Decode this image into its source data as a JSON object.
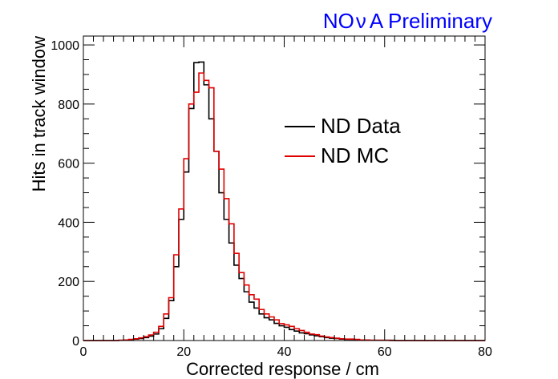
{
  "banner": {
    "text_left": "NO",
    "text_nu": "ν",
    "text_right": "A Preliminary",
    "color": "#0000ff"
  },
  "chart_data": {
    "type": "line",
    "step": true,
    "xlabel": "Corrected response / cm",
    "ylabel": "Hits in track window",
    "xlim": [
      0,
      80
    ],
    "ylim": [
      0,
      1030
    ],
    "xticks": [
      0,
      20,
      40,
      60,
      80
    ],
    "yticks": [
      0,
      200,
      400,
      600,
      800,
      1000
    ],
    "grid": false,
    "legend": "upper-right-inside",
    "bin_width": 1,
    "x": [
      0,
      1,
      2,
      3,
      4,
      5,
      6,
      7,
      8,
      9,
      10,
      11,
      12,
      13,
      14,
      15,
      16,
      17,
      18,
      19,
      20,
      21,
      22,
      23,
      24,
      25,
      26,
      27,
      28,
      29,
      30,
      31,
      32,
      33,
      34,
      35,
      36,
      37,
      38,
      39,
      40,
      41,
      42,
      43,
      44,
      45,
      46,
      47,
      48,
      49,
      50,
      51,
      52,
      53,
      54,
      55,
      56,
      57,
      58,
      59,
      60,
      61,
      62,
      63,
      64,
      65,
      66,
      67,
      68,
      69,
      70,
      71,
      72,
      73,
      74,
      75,
      76,
      77,
      78,
      79
    ],
    "series": [
      {
        "name": "ND Data",
        "color": "#000000",
        "values": [
          0,
          0,
          0,
          0,
          0,
          0,
          0,
          1,
          2,
          3,
          5,
          7,
          10,
          15,
          22,
          40,
          75,
          135,
          250,
          410,
          570,
          785,
          940,
          942,
          865,
          750,
          640,
          500,
          410,
          330,
          255,
          210,
          165,
          130,
          110,
          90,
          77,
          70,
          58,
          50,
          45,
          37,
          32,
          26,
          23,
          19,
          16,
          13,
          10,
          8,
          7,
          5,
          4,
          4,
          3,
          2,
          2,
          1,
          1,
          1,
          1,
          1,
          0,
          0,
          0,
          0,
          0,
          0,
          0,
          0,
          0,
          0,
          0,
          0,
          0,
          0,
          0,
          0,
          0,
          0
        ]
      },
      {
        "name": "ND MC",
        "color": "#e00000",
        "values": [
          0,
          0,
          0,
          0,
          0,
          0,
          0,
          1,
          2,
          4,
          6,
          9,
          13,
          19,
          28,
          48,
          90,
          145,
          290,
          445,
          615,
          800,
          840,
          905,
          880,
          855,
          640,
          580,
          480,
          395,
          295,
          230,
          188,
          155,
          140,
          105,
          90,
          80,
          70,
          57,
          53,
          48,
          40,
          34,
          28,
          22,
          20,
          15,
          12,
          10,
          8,
          6,
          5,
          5,
          4,
          2,
          2,
          1,
          1,
          1,
          1,
          0,
          0,
          0,
          0,
          0,
          0,
          0,
          0,
          0,
          0,
          0,
          0,
          0,
          0,
          0,
          0,
          0,
          0,
          0
        ]
      }
    ]
  }
}
